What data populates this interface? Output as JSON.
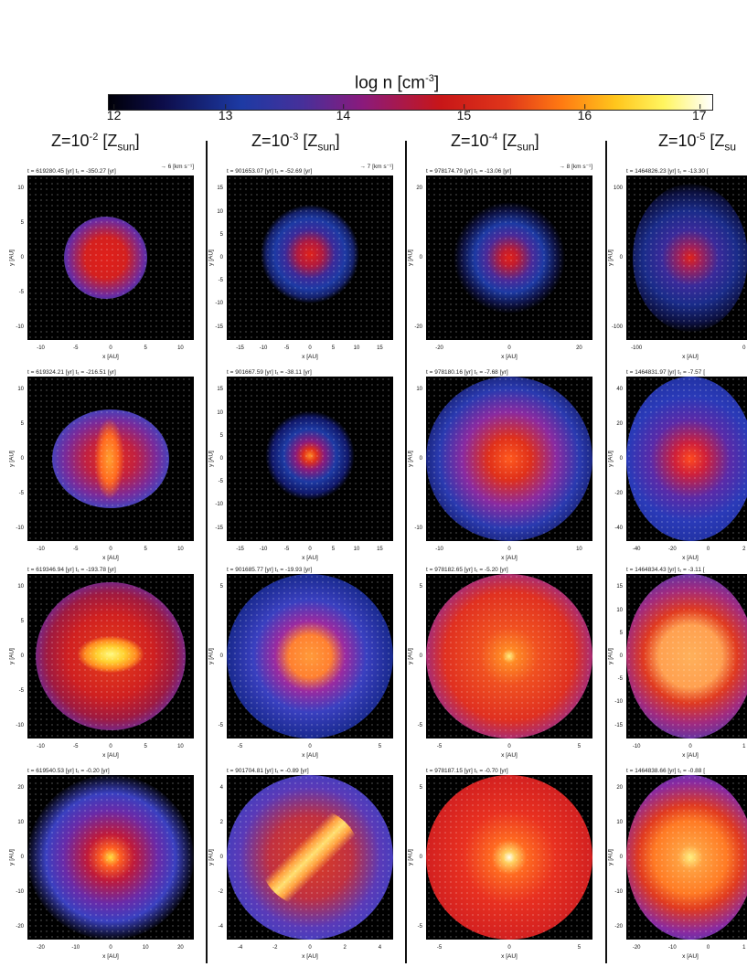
{
  "colorbar": {
    "title": "log n [cm",
    "title_sup": "-3",
    "title_end": "]",
    "ticks": [
      "12",
      "13",
      "14",
      "15",
      "16",
      "17"
    ]
  },
  "columns": [
    {
      "title_pre": "Z=10",
      "sup": "-2",
      "title_post": " [Z",
      "sub": "sun",
      "close": "]"
    },
    {
      "title_pre": "Z=10",
      "sup": "-3",
      "title_post": " [Z",
      "sub": "sun",
      "close": "]"
    },
    {
      "title_pre": "Z=10",
      "sup": "-4",
      "title_post": " [Z",
      "sub": "sun",
      "close": "]"
    },
    {
      "title_pre": "Z=10",
      "sup": "-5",
      "title_post": " [Z",
      "sub": "su",
      "close": ""
    }
  ],
  "axis": {
    "ylabel": "y [AU]",
    "xlabel": "x [AU]"
  },
  "panels": [
    {
      "time": "t = 619280.45 [yr]   t₁ = -350.27 [yr]",
      "vel": "→ 6 [km s⁻¹]",
      "yticks": [
        "10",
        "5",
        "0",
        "-5",
        "-10"
      ],
      "xticks": [
        "-10",
        "-5",
        "0",
        "5",
        "10"
      ]
    },
    {
      "time": "t = 901653.07 [yr]   t₁ = -52.69 [yr]",
      "vel": "→ 7 [km s⁻¹]",
      "yticks": [
        "15",
        "10",
        "5",
        "0",
        "-5",
        "-10",
        "-15"
      ],
      "xticks": [
        "-15",
        "-10",
        "-5",
        "0",
        "5",
        "10",
        "15"
      ]
    },
    {
      "time": "t = 978174.79 [yr]   t₁ = -13.06 [yr]",
      "vel": "→ 8 [km s⁻¹]",
      "yticks": [
        "20",
        "0",
        "-20"
      ],
      "xticks": [
        "-20",
        "0",
        "20"
      ]
    },
    {
      "time": "t = 1464826.23 [yr]   t₁ = -13.30 [",
      "vel": "",
      "yticks": [
        "100",
        "0",
        "-100"
      ],
      "xticks": [
        "-100",
        "0"
      ]
    },
    {
      "time": "t = 619324.21 [yr]   t₁ = -216.51 [yr]",
      "vel": "",
      "yticks": [
        "10",
        "5",
        "0",
        "-5",
        "-10"
      ],
      "xticks": [
        "-10",
        "-5",
        "0",
        "5",
        "10"
      ]
    },
    {
      "time": "t = 901667.59 [yr]   t₁ = -38.11 [yr]",
      "vel": "",
      "yticks": [
        "15",
        "10",
        "5",
        "0",
        "-5",
        "-10",
        "-15"
      ],
      "xticks": [
        "-15",
        "-10",
        "-5",
        "0",
        "5",
        "10",
        "15"
      ]
    },
    {
      "time": "t = 978180.16 [yr]   t₁ = -7.68 [yr]",
      "vel": "",
      "yticks": [
        "10",
        "0",
        "-10"
      ],
      "xticks": [
        "-10",
        "0",
        "10"
      ]
    },
    {
      "time": "t = 1464831.97 [yr]   t₁ = -7.57 [",
      "vel": "",
      "yticks": [
        "40",
        "20",
        "0",
        "-20",
        "-40"
      ],
      "xticks": [
        "-40",
        "-20",
        "0",
        "2"
      ]
    },
    {
      "time": "t = 619346.94 [yr]   t₁ = -193.78 [yr]",
      "vel": "",
      "yticks": [
        "10",
        "5",
        "0",
        "-5",
        "-10"
      ],
      "xticks": [
        "-10",
        "-5",
        "0",
        "5",
        "10"
      ]
    },
    {
      "time": "t = 901685.77 [yr]   t₁ = -19.93 [yr]",
      "vel": "",
      "yticks": [
        "5",
        "0",
        "-5"
      ],
      "xticks": [
        "-5",
        "0",
        "5"
      ]
    },
    {
      "time": "t = 978182.65 [yr]   t₁ = -5.20 [yr]",
      "vel": "",
      "yticks": [
        "5",
        "0",
        "-5"
      ],
      "xticks": [
        "-5",
        "0",
        "5"
      ]
    },
    {
      "time": "t = 1464834.43 [yr]   t₁ = -3.11 [",
      "vel": "",
      "yticks": [
        "15",
        "10",
        "5",
        "0",
        "-5",
        "-10",
        "-15"
      ],
      "xticks": [
        "-10",
        "0",
        "1"
      ]
    },
    {
      "time": "t = 619540.53 [yr]   t₁ = -0.20 [yr]",
      "vel": "",
      "yticks": [
        "20",
        "10",
        "0",
        "-10",
        "-20"
      ],
      "xticks": [
        "-20",
        "-10",
        "0",
        "10",
        "20"
      ]
    },
    {
      "time": "t = 901704.81 [yr]   t₁ = -0.89 [yr]",
      "vel": "",
      "yticks": [
        "4",
        "2",
        "0",
        "-2",
        "-4"
      ],
      "xticks": [
        "-4",
        "-2",
        "0",
        "2",
        "4"
      ]
    },
    {
      "time": "t = 978187.15 [yr]   t₁ = -0.70 [yr]",
      "vel": "",
      "yticks": [
        "5",
        "0",
        "-5"
      ],
      "xticks": [
        "-5",
        "0",
        "5"
      ]
    },
    {
      "time": "t = 1464838.66 [yr]   t₁ = -0.88 [",
      "vel": "",
      "yticks": [
        "20",
        "10",
        "0",
        "-10",
        "-20"
      ],
      "xticks": [
        "-20",
        "-10",
        "0",
        "1"
      ]
    }
  ]
}
